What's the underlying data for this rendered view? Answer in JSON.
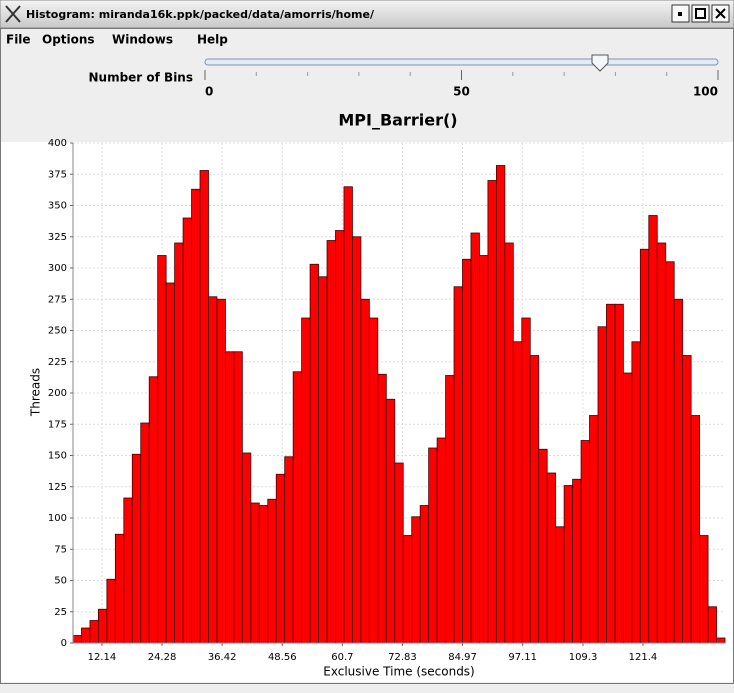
{
  "window": {
    "title": "Histogram: miranda16k.ppk/packed/data/amorris/home/"
  },
  "menu": [
    "File",
    "Options",
    "Windows",
    "Help"
  ],
  "slider": {
    "label": "Number of Bins",
    "range": [
      0,
      100
    ],
    "ticks": [
      0,
      50,
      100
    ],
    "value": 77
  },
  "chart_data": {
    "type": "histogram",
    "title": "MPI_Barrier()",
    "x_label": "Exclusive Time (seconds)",
    "y_label": "Threads",
    "bins": [
      6.3,
      8.01,
      9.72,
      11.43,
      13.14,
      14.85,
      16.56,
      18.27,
      19.98,
      21.69,
      23.4,
      25.11,
      26.82,
      28.53,
      30.24,
      31.95,
      33.66,
      35.37,
      37.08,
      38.79,
      40.5,
      42.21,
      43.92,
      45.63,
      47.34,
      49.05,
      50.76,
      52.47,
      54.18,
      55.89,
      57.6,
      59.31,
      61.02,
      62.73,
      64.44,
      66.15,
      67.86,
      69.57,
      71.28,
      72.99,
      74.7,
      76.41,
      78.12,
      79.83,
      81.54,
      83.25,
      84.96,
      86.67,
      88.38,
      90.09,
      91.8,
      93.51,
      95.22,
      96.93,
      98.64,
      100.35,
      102.06,
      103.77,
      105.48,
      107.19,
      108.9,
      110.61,
      112.32,
      114.03,
      115.74,
      117.45,
      119.16,
      120.87,
      122.58,
      124.29,
      126.0,
      127.71,
      129.42,
      131.13,
      132.84,
      134.55,
      136.26,
      137.97
    ],
    "values": [
      6,
      12,
      18,
      27,
      51,
      87,
      116,
      151,
      176,
      213,
      310,
      288,
      320,
      340,
      363,
      378,
      277,
      275,
      233,
      233,
      152,
      112,
      110,
      115,
      135,
      149,
      217,
      260,
      303,
      293,
      322,
      330,
      365,
      325,
      275,
      260,
      215,
      195,
      144,
      86,
      101,
      110,
      156,
      164,
      214,
      285,
      307,
      328,
      310,
      370,
      382,
      320,
      241,
      260,
      230,
      155,
      136,
      93,
      126,
      131,
      162,
      182,
      253,
      271,
      271,
      216,
      241,
      315,
      342,
      320,
      305,
      275,
      230,
      182,
      86,
      29,
      4
    ],
    "color": "#ff0000",
    "xlim": [
      6.3,
      137.97
    ],
    "xticks": [
      12.14,
      24.28,
      36.42,
      48.56,
      60.7,
      72.83,
      84.97,
      97.11,
      109.3,
      121.4
    ],
    "ylim": [
      0,
      400
    ],
    "yticks": [
      0,
      25,
      50,
      75,
      100,
      125,
      150,
      175,
      200,
      225,
      250,
      275,
      300,
      325,
      350,
      375,
      400
    ],
    "grid": true
  }
}
